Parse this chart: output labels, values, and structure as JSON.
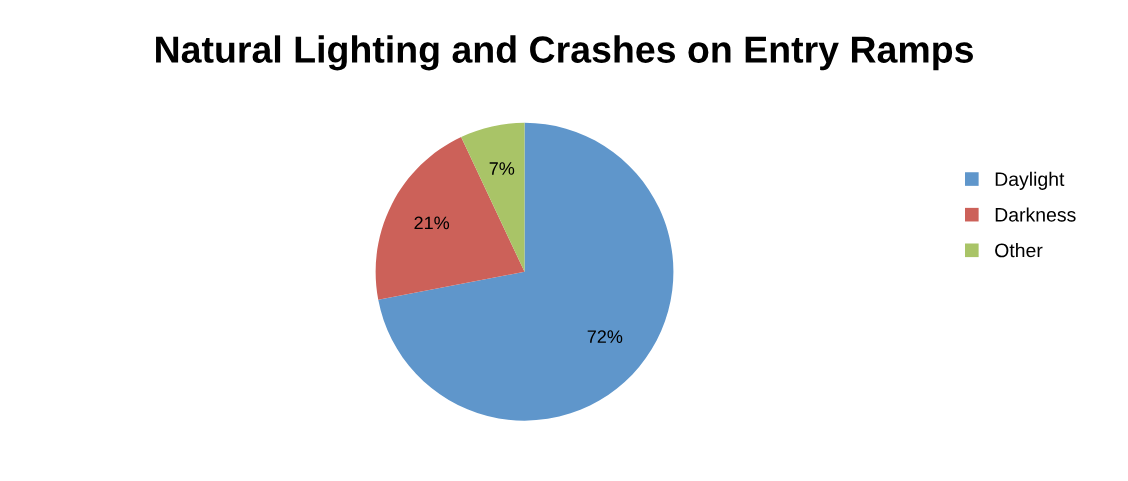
{
  "chart_data": {
    "type": "pie",
    "title": "Natural Lighting and Crashes on Entry Ramps",
    "categories": [
      "Daylight",
      "Darkness",
      "Other"
    ],
    "values": [
      72,
      21,
      7
    ],
    "colors": [
      "#5f96cb",
      "#cc6159",
      "#a9c467"
    ],
    "value_labels": [
      "72%",
      "21%",
      "7%"
    ],
    "legend": "right"
  }
}
